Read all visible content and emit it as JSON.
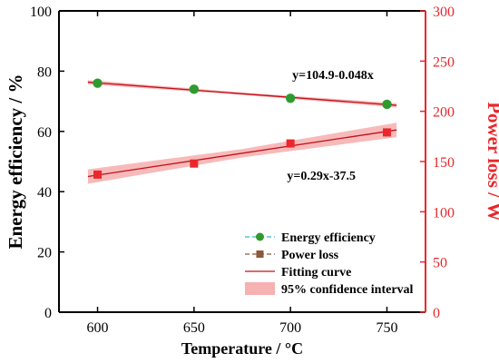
{
  "chart_data": {
    "type": "scatter",
    "xlabel": "Temperature / °C",
    "ylabel_left": "Energy efficiency / %",
    "ylabel_right": "Power loss / W",
    "xlim": [
      580,
      770
    ],
    "ylim_left": [
      0,
      100
    ],
    "ylim_right": [
      0,
      300
    ],
    "xticks": [
      600,
      650,
      700,
      750
    ],
    "yticks_left": [
      0,
      20,
      40,
      60,
      80,
      100
    ],
    "yticks_right": [
      0,
      50,
      100,
      150,
      200,
      250,
      300
    ],
    "grid": false,
    "legend_position": "bottom-right",
    "series": [
      {
        "name": "Energy efficiency",
        "axis": "left",
        "marker": "circle",
        "color": "#2e9b2e",
        "x": [
          600,
          650,
          700,
          750
        ],
        "y": [
          76,
          74,
          71,
          69
        ],
        "fit": {
          "slope": -0.048,
          "intercept": 104.9,
          "label": "y=104.9-0.048x",
          "ci": 0.7
        }
      },
      {
        "name": "Power loss",
        "axis": "right",
        "marker": "square",
        "color": "#e8282b",
        "x": [
          600,
          650,
          700,
          750
        ],
        "y": [
          137,
          148,
          168,
          179
        ],
        "fit": {
          "slope": 0.29,
          "intercept": -37.5,
          "label": "y=0.29x-37.5",
          "ci": 7
        }
      }
    ],
    "legend": [
      {
        "label": "Energy efficiency",
        "kind": "circle-line"
      },
      {
        "label": "Power loss",
        "kind": "square-line"
      },
      {
        "label": "Fitting curve",
        "kind": "line"
      },
      {
        "label": "95% confidence interval",
        "kind": "band"
      }
    ],
    "colors": {
      "left_axis": "#000000",
      "right_axis": "#e8282b",
      "fit_line": "#c0101a",
      "band": "#f4a3a3",
      "legend_line_cyan": "#34b7c9",
      "legend_line_brown": "#8b5a3c"
    }
  }
}
